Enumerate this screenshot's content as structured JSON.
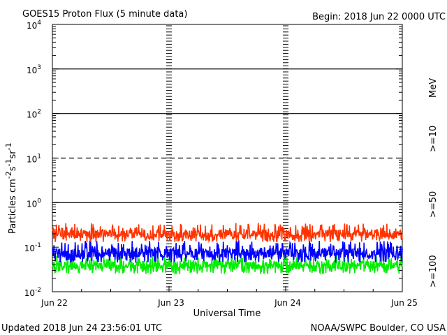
{
  "header": {
    "title": "GOES15 Proton Flux (5 minute data)",
    "begin": "Begin: 2018 Jun 22 0000 UTC"
  },
  "footer": {
    "updated": "Updated 2018 Jun 24 23:56:01 UTC",
    "credit": "NOAA/SWPC Boulder, CO USA"
  },
  "colors": {
    "gt10": "#ff3300",
    "gt50": "#0000ff",
    "gt100": "#00ee00",
    "grid": "#000000"
  },
  "chart_data": {
    "type": "line",
    "title": "GOES15 Proton Flux (5 minute data)",
    "xlabel": "Universal Time",
    "ylabel": "Particles cm-2 s-1 sr-1",
    "yscale": "log",
    "ylim": [
      0.01,
      10000
    ],
    "xlim": [
      0,
      3
    ],
    "y_ticks": [
      {
        "value": 0.01,
        "base": "10",
        "exp": "-2"
      },
      {
        "value": 0.1,
        "base": "10",
        "exp": "-1"
      },
      {
        "value": 1,
        "base": "10",
        "exp": "0"
      },
      {
        "value": 10,
        "base": "10",
        "exp": "1"
      },
      {
        "value": 100,
        "base": "10",
        "exp": "2"
      },
      {
        "value": 1000,
        "base": "10",
        "exp": "3"
      },
      {
        "value": 10000,
        "base": "10",
        "exp": "4"
      }
    ],
    "x_ticks": [
      {
        "value": 0,
        "label": "Jun 22"
      },
      {
        "value": 1,
        "label": "Jun 23"
      },
      {
        "value": 2,
        "label": "Jun 24"
      },
      {
        "value": 3,
        "label": "Jun 25"
      }
    ],
    "threshold_lines": [
      {
        "value": 1,
        "style": "solid"
      },
      {
        "value": 10,
        "style": "dashed"
      },
      {
        "value": 100,
        "style": "solid"
      },
      {
        "value": 1000,
        "style": "solid"
      }
    ],
    "legend": {
      "unit": "MeV",
      "entries": [
        {
          "label": ">=10",
          "color": "#ff3300"
        },
        {
          "label": ">=50",
          "color": "#0000ff"
        },
        {
          "label": ">=100",
          "color": "#00ee00"
        }
      ]
    },
    "series": [
      {
        "color": "#ff3300",
        "band": [
          0.13,
          0.35
        ],
        "typical": 0.2
      },
      {
        "color": "#0000ff",
        "band": [
          0.045,
          0.14
        ],
        "typical": 0.075
      },
      {
        "color": "#00ee00",
        "band": [
          0.025,
          0.065
        ],
        "typical": 0.04
      }
    ]
  }
}
